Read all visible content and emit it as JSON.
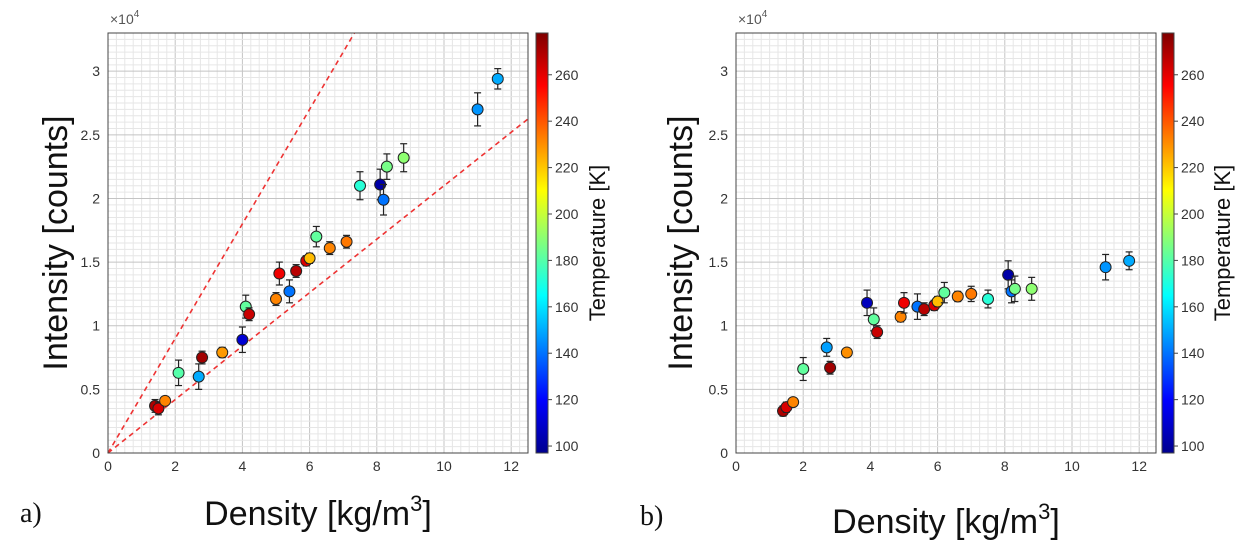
{
  "chart_data": [
    {
      "type": "scatter",
      "panel_label": "a)",
      "xlabel": "Density [kg/m",
      "xlabel_sup": "3",
      "xlabel_end": "]",
      "ylabel": "Intensity [counts]",
      "y_multiplier": "×10",
      "y_multiplier_exp": "4",
      "xlim": [
        0,
        12.5
      ],
      "ylim": [
        0,
        3.3
      ],
      "x_ticks": [
        "0",
        "2",
        "4",
        "6",
        "8",
        "10",
        "12"
      ],
      "y_ticks": [
        "0",
        "0.5",
        "1",
        "1.5",
        "2",
        "2.5",
        "3"
      ],
      "colorbar": {
        "label": "Temperature [K]",
        "range": [
          97,
          278
        ],
        "ticks": [
          "100",
          "120",
          "140",
          "160",
          "180",
          "200",
          "220",
          "240",
          "260"
        ]
      },
      "reference_lines": [
        {
          "slope": 0.45,
          "style": "dashed",
          "color": "#ee3333"
        },
        {
          "slope": 0.21,
          "style": "dashed",
          "color": "#ee3333"
        }
      ],
      "points": [
        {
          "x": 1.4,
          "y": 0.37,
          "err": 0.05,
          "t": 270
        },
        {
          "x": 1.5,
          "y": 0.35,
          "err": 0.05,
          "t": 262
        },
        {
          "x": 1.7,
          "y": 0.41,
          "err": 0.03,
          "t": 232
        },
        {
          "x": 2.1,
          "y": 0.63,
          "err": 0.1,
          "t": 180
        },
        {
          "x": 2.7,
          "y": 0.6,
          "err": 0.1,
          "t": 150
        },
        {
          "x": 2.8,
          "y": 0.75,
          "err": 0.05,
          "t": 272
        },
        {
          "x": 3.4,
          "y": 0.79,
          "err": 0.04,
          "t": 228
        },
        {
          "x": 4.0,
          "y": 0.89,
          "err": 0.1,
          "t": 112
        },
        {
          "x": 4.1,
          "y": 1.15,
          "err": 0.09,
          "t": 182
        },
        {
          "x": 4.2,
          "y": 1.09,
          "err": 0.05,
          "t": 265
        },
        {
          "x": 5.0,
          "y": 1.21,
          "err": 0.05,
          "t": 232
        },
        {
          "x": 5.1,
          "y": 1.41,
          "err": 0.09,
          "t": 258
        },
        {
          "x": 5.4,
          "y": 1.27,
          "err": 0.09,
          "t": 140
        },
        {
          "x": 5.6,
          "y": 1.43,
          "err": 0.05,
          "t": 268
        },
        {
          "x": 5.9,
          "y": 1.51,
          "err": 0.04,
          "t": 262
        },
        {
          "x": 6.0,
          "y": 1.53,
          "err": 0.04,
          "t": 222
        },
        {
          "x": 6.2,
          "y": 1.7,
          "err": 0.08,
          "t": 182
        },
        {
          "x": 6.6,
          "y": 1.61,
          "err": 0.05,
          "t": 232
        },
        {
          "x": 7.1,
          "y": 1.66,
          "err": 0.05,
          "t": 234
        },
        {
          "x": 7.5,
          "y": 2.1,
          "err": 0.11,
          "t": 172
        },
        {
          "x": 8.1,
          "y": 2.11,
          "err": 0.12,
          "t": 104
        },
        {
          "x": 8.2,
          "y": 1.99,
          "err": 0.12,
          "t": 140
        },
        {
          "x": 8.3,
          "y": 2.25,
          "err": 0.1,
          "t": 186
        },
        {
          "x": 8.8,
          "y": 2.32,
          "err": 0.11,
          "t": 190
        },
        {
          "x": 11.0,
          "y": 2.7,
          "err": 0.13,
          "t": 146
        },
        {
          "x": 11.6,
          "y": 2.94,
          "err": 0.08,
          "t": 150
        }
      ]
    },
    {
      "type": "scatter",
      "panel_label": "b)",
      "xlabel": "Density [kg/m",
      "xlabel_sup": "3",
      "xlabel_end": "]",
      "ylabel": "Intensity [counts]",
      "y_multiplier": "×10",
      "y_multiplier_exp": "4",
      "xlim": [
        0,
        12.5
      ],
      "ylim": [
        0,
        3.3
      ],
      "x_ticks": [
        "0",
        "2",
        "4",
        "6",
        "8",
        "10",
        "12"
      ],
      "y_ticks": [
        "0",
        "0.5",
        "1",
        "1.5",
        "2",
        "2.5",
        "3"
      ],
      "colorbar": {
        "label": "Temperature [K]",
        "range": [
          97,
          278
        ],
        "ticks": [
          "100",
          "120",
          "140",
          "160",
          "180",
          "200",
          "220",
          "240",
          "260"
        ]
      },
      "reference_lines": [],
      "points": [
        {
          "x": 1.4,
          "y": 0.33,
          "err": 0.04,
          "t": 270
        },
        {
          "x": 1.5,
          "y": 0.36,
          "err": 0.04,
          "t": 262
        },
        {
          "x": 1.7,
          "y": 0.4,
          "err": 0.03,
          "t": 232
        },
        {
          "x": 2.0,
          "y": 0.66,
          "err": 0.09,
          "t": 182
        },
        {
          "x": 2.7,
          "y": 0.83,
          "err": 0.07,
          "t": 148
        },
        {
          "x": 2.8,
          "y": 0.67,
          "err": 0.05,
          "t": 272
        },
        {
          "x": 3.3,
          "y": 0.79,
          "err": 0.03,
          "t": 230
        },
        {
          "x": 3.9,
          "y": 1.18,
          "err": 0.1,
          "t": 108
        },
        {
          "x": 4.1,
          "y": 1.05,
          "err": 0.09,
          "t": 182
        },
        {
          "x": 4.2,
          "y": 0.95,
          "err": 0.05,
          "t": 265
        },
        {
          "x": 4.9,
          "y": 1.07,
          "err": 0.04,
          "t": 232
        },
        {
          "x": 5.0,
          "y": 1.18,
          "err": 0.08,
          "t": 258
        },
        {
          "x": 5.4,
          "y": 1.15,
          "err": 0.1,
          "t": 140
        },
        {
          "x": 5.6,
          "y": 1.13,
          "err": 0.05,
          "t": 268
        },
        {
          "x": 5.9,
          "y": 1.16,
          "err": 0.04,
          "t": 262
        },
        {
          "x": 6.0,
          "y": 1.19,
          "err": 0.04,
          "t": 222
        },
        {
          "x": 6.2,
          "y": 1.26,
          "err": 0.08,
          "t": 182
        },
        {
          "x": 6.6,
          "y": 1.23,
          "err": 0.04,
          "t": 232
        },
        {
          "x": 7.0,
          "y": 1.25,
          "err": 0.06,
          "t": 234
        },
        {
          "x": 7.5,
          "y": 1.21,
          "err": 0.07,
          "t": 172
        },
        {
          "x": 8.1,
          "y": 1.4,
          "err": 0.11,
          "t": 104
        },
        {
          "x": 8.2,
          "y": 1.27,
          "err": 0.09,
          "t": 140
        },
        {
          "x": 8.3,
          "y": 1.29,
          "err": 0.1,
          "t": 186
        },
        {
          "x": 8.8,
          "y": 1.29,
          "err": 0.09,
          "t": 190
        },
        {
          "x": 11.0,
          "y": 1.46,
          "err": 0.1,
          "t": 146
        },
        {
          "x": 11.7,
          "y": 1.51,
          "err": 0.07,
          "t": 150
        }
      ]
    }
  ]
}
